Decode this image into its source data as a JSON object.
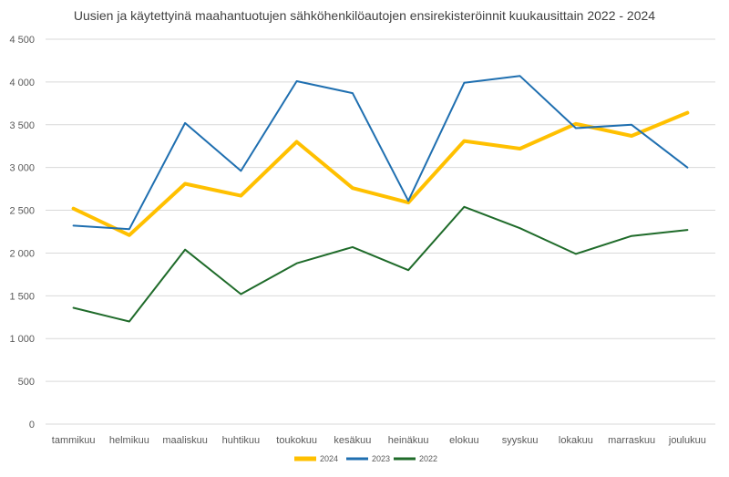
{
  "chart_data": {
    "type": "line",
    "title": "Uusien ja käytettyinä maahantuotujen sähköhenkilöautojen ensirekisteröinnit kuukausittain 2022 - 2024",
    "categories": [
      "tammikuu",
      "helmikuu",
      "maaliskuu",
      "huhtikuu",
      "toukokuu",
      "kesäkuu",
      "heinäkuu",
      "elokuu",
      "syyskuu",
      "lokakuu",
      "marraskuu",
      "joulukuu"
    ],
    "ylim": [
      0,
      4500
    ],
    "yticks": [
      0,
      500,
      1000,
      1500,
      2000,
      2500,
      3000,
      3500,
      4000,
      4500
    ],
    "ytick_labels": [
      "0",
      "500",
      "1 000",
      "1 500",
      "2 000",
      "2 500",
      "3 000",
      "3 500",
      "4 000",
      "4 500"
    ],
    "grid": true,
    "legend_position": "bottom",
    "series": [
      {
        "name": "2024",
        "color": "#FFC000",
        "width": 4,
        "values": [
          2520,
          2210,
          2810,
          2670,
          3300,
          2760,
          2590,
          3310,
          3220,
          3510,
          3370,
          3640
        ]
      },
      {
        "name": "2023",
        "color": "#1F6FB0",
        "width": 2,
        "values": [
          2320,
          2280,
          3520,
          2960,
          4010,
          3870,
          2610,
          3990,
          4070,
          3460,
          3500,
          3000
        ]
      },
      {
        "name": "2022",
        "color": "#1F6B2A",
        "width": 2,
        "values": [
          1360,
          1200,
          2040,
          1520,
          1880,
          2070,
          1800,
          2540,
          2290,
          1990,
          2200,
          2270
        ]
      }
    ]
  }
}
